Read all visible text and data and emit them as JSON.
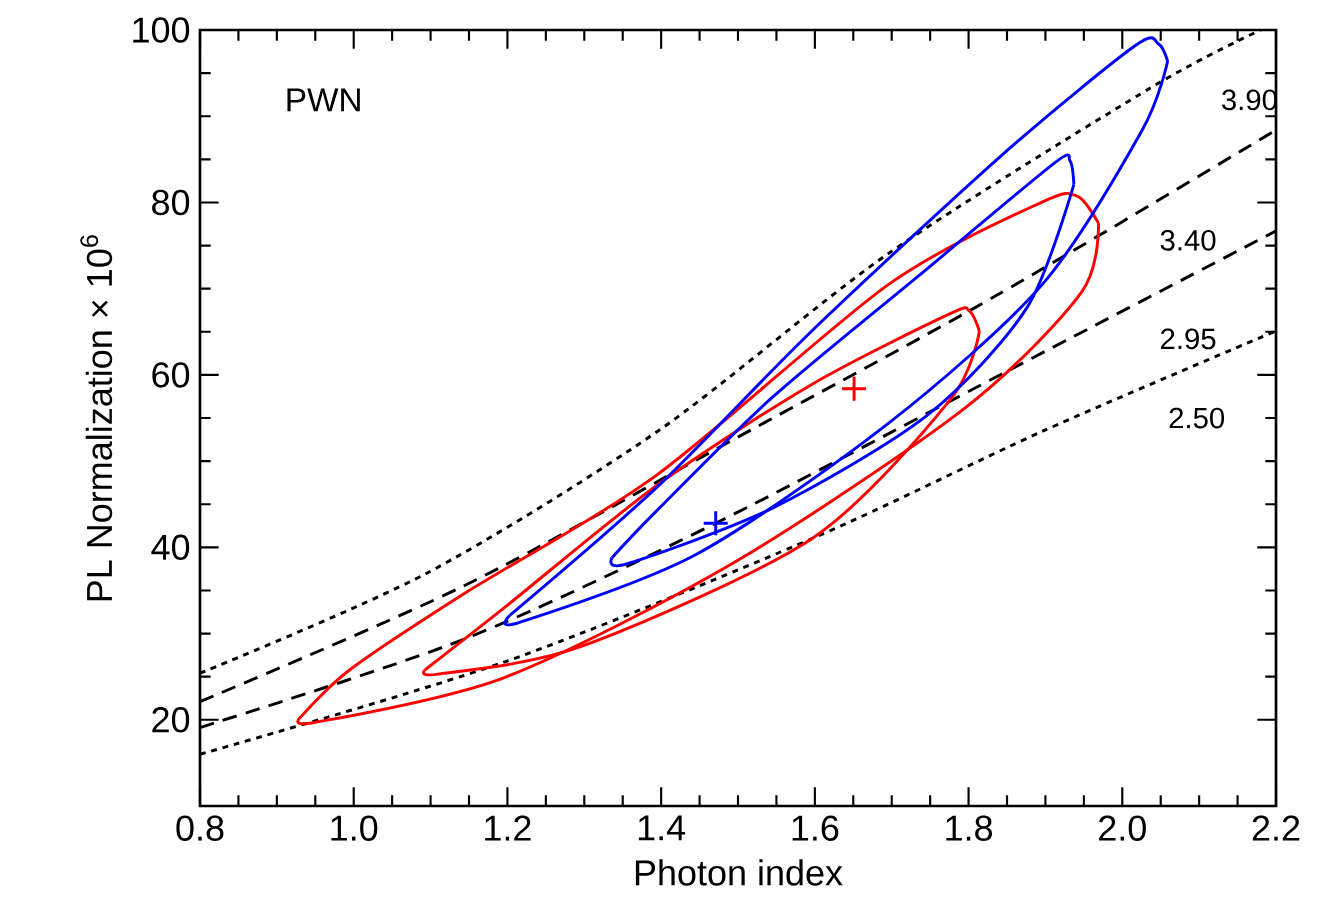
{
  "chart_data": {
    "type": "line",
    "xlabel": "Photon index",
    "ylabel": "PL Normalization × 10$^{6}$",
    "xlim": [
      0.8,
      2.2
    ],
    "ylim": [
      10,
      100
    ],
    "xticks": [
      {
        "value": 0.8,
        "label": "0.8"
      },
      {
        "value": 1.0,
        "label": "1.0"
      },
      {
        "value": 1.2,
        "label": "1.2"
      },
      {
        "value": 1.4,
        "label": "1.4"
      },
      {
        "value": 1.6,
        "label": "1.6"
      },
      {
        "value": 1.8,
        "label": "1.8"
      },
      {
        "value": 2.0,
        "label": "2.0"
      },
      {
        "value": 2.2,
        "label": "2.2"
      }
    ],
    "yticks": [
      20,
      40,
      60,
      80,
      100
    ],
    "series": [
      {
        "color": "#000000",
        "line_style": "dotted",
        "marker": "none",
        "x": [
          0.8,
          1.095,
          1.396,
          1.696,
          2.037,
          2.18
        ],
        "values": [
          25.4,
          37.0,
          53.5,
          74.1,
          93.3,
          100
        ]
      },
      {
        "color": "#000000",
        "line_style": "dashed",
        "marker": "none",
        "x": [
          0.8,
          1.145,
          1.496,
          1.836,
          2.2
        ],
        "values": [
          22.1,
          35.6,
          52.6,
          69.2,
          88.4
        ]
      },
      {
        "color": "#000000",
        "line_style": "dashed",
        "marker": "none",
        "x": [
          0.8,
          1.145,
          1.471,
          1.856,
          2.2
        ],
        "values": [
          19.1,
          29.4,
          42.8,
          60.7,
          76.7
        ]
      },
      {
        "color": "#000000",
        "line_style": "dotted",
        "marker": "none",
        "x": [
          0.8,
          1.196,
          1.596,
          1.897,
          2.2
        ],
        "values": [
          16.0,
          26.7,
          41.0,
          53.5,
          65.1
        ]
      },
      {
        "color": "#ff0000",
        "line_style": "solid",
        "marker": "none",
        "x": [
          0.932,
          0.995,
          1.145,
          1.396,
          1.696,
          1.897,
          1.942,
          1.969
        ],
        "values": [
          20.4,
          25.8,
          34.7,
          48.5,
          70.5,
          80.1,
          80.7,
          77.6
        ]
      },
      {
        "color": "#ff0000",
        "line_style": "solid",
        "marker": "none",
        "x": [
          0.932,
          0.95,
          1.196,
          1.496,
          1.796,
          1.947,
          1.969
        ],
        "values": [
          20.4,
          19.7,
          24.9,
          38.3,
          56.2,
          69.6,
          77.6
        ]
      },
      {
        "color": "#ff0000",
        "line_style": "solid",
        "marker": "none",
        "x": [
          1.093,
          1.196,
          1.396,
          1.596,
          1.776,
          1.801,
          1.814
        ],
        "values": [
          25.8,
          33.0,
          47.3,
          58.9,
          67.1,
          67.4,
          65.1
        ]
      },
      {
        "color": "#ff0000",
        "line_style": "solid",
        "marker": "none",
        "x": [
          1.093,
          1.11,
          1.296,
          1.596,
          1.776,
          1.814
        ],
        "values": [
          25.8,
          25.3,
          28.5,
          41.0,
          57.1,
          65.1
        ]
      },
      {
        "color": "#0000ff",
        "line_style": "solid",
        "marker": "none",
        "x": [
          1.203,
          1.396,
          1.596,
          1.846,
          2.017,
          2.047,
          2.059
        ],
        "values": [
          32.1,
          47.1,
          65.1,
          85.7,
          98.2,
          98.4,
          96.4
        ]
      },
      {
        "color": "#0000ff",
        "line_style": "solid",
        "marker": "none",
        "x": [
          1.203,
          1.216,
          1.446,
          1.696,
          1.896,
          2.026,
          2.059
        ],
        "values": [
          32.1,
          31.3,
          39.2,
          54.4,
          70.5,
          88.4,
          96.4
        ]
      },
      {
        "color": "#0000ff",
        "line_style": "solid",
        "marker": "none",
        "x": [
          1.336,
          1.396,
          1.546,
          1.746,
          1.912,
          1.932,
          1.937
        ],
        "values": [
          38.8,
          44.4,
          57.5,
          72.3,
          84.6,
          84.8,
          82.1
        ]
      },
      {
        "color": "#0000ff",
        "line_style": "solid",
        "marker": "none",
        "x": [
          1.336,
          1.356,
          1.546,
          1.746,
          1.876,
          1.937
        ],
        "values": [
          38.8,
          38.1,
          44.6,
          55.3,
          67.8,
          82.1
        ]
      },
      {
        "type": "scatter",
        "color": "#0000ff",
        "marker": "cross",
        "x": [
          1.471
        ],
        "values": [
          42.8
        ]
      },
      {
        "type": "scatter",
        "color": "#ff0000",
        "marker": "cross",
        "x": [
          1.651
        ],
        "values": [
          58.4
        ]
      }
    ],
    "annotations": [
      "PWN",
      "3.90",
      "3.40",
      "2.95",
      "2.50"
    ]
  }
}
